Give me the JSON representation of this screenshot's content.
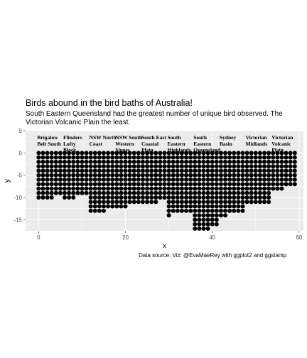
{
  "chart_data": {
    "type": "scatter",
    "title": "Birds abound in the bird baths of Australia!",
    "subtitle": "South Eastern Queensland had the greatest number of unique bird observed. The Victorian Volcanic Plain the least.",
    "caption": "Data source:  Viz: @EvaMaeRey with ggplot2 and ggstamp",
    "xlabel": "x",
    "ylabel": "y",
    "xlim": [
      -3,
      61
    ],
    "ylim": [
      -17.5,
      5
    ],
    "x_ticks": [
      0,
      20,
      40,
      60
    ],
    "y_ticks": [
      5,
      0,
      -5,
      -10,
      -15
    ],
    "grid": true,
    "regions": [
      {
        "name": "Bioregion 1",
        "label": [
          "Brigalow",
          "Belt South"
        ],
        "x_start": 0,
        "rows": [
          6,
          6,
          6,
          6,
          6,
          6,
          6,
          6,
          6,
          6,
          4
        ]
      },
      {
        "name": "Bioregion 2",
        "label": [
          "Flinders",
          "Lofty",
          "Block"
        ],
        "x_start": 6,
        "rows": [
          6,
          6,
          6,
          6,
          6,
          6,
          6,
          6,
          6,
          6,
          3
        ]
      },
      {
        "name": "Bioregion 3",
        "label": [
          "NSW North",
          "Coast"
        ],
        "x_start": 12,
        "rows": [
          6,
          6,
          6,
          6,
          6,
          6,
          6,
          6,
          6,
          6,
          6,
          6,
          6,
          4
        ]
      },
      {
        "name": "Bioregion 4",
        "label": [
          "NSW South",
          "Western",
          "Slopes"
        ],
        "x_start": 18,
        "rows": [
          6,
          6,
          6,
          6,
          6,
          6,
          6,
          6,
          6,
          6,
          6,
          6,
          3
        ]
      },
      {
        "name": "Bioregion 5",
        "label": [
          "South East",
          "Coastal",
          "Plain"
        ],
        "x_start": 24,
        "rows": [
          6,
          6,
          6,
          6,
          6,
          6,
          6,
          6,
          6,
          6,
          6,
          4
        ]
      },
      {
        "name": "Bioregion 6",
        "label": [
          "South",
          "Eastern",
          "Highlands"
        ],
        "x_start": 30,
        "rows": [
          6,
          6,
          6,
          6,
          6,
          6,
          6,
          6,
          6,
          6,
          6,
          6,
          6,
          6,
          1
        ]
      },
      {
        "name": "Bioregion 7",
        "label": [
          "South",
          "Eastern",
          "Queensland"
        ],
        "x_start": 36,
        "rows": [
          6,
          6,
          6,
          6,
          6,
          6,
          6,
          6,
          6,
          6,
          6,
          6,
          6,
          6,
          6,
          6,
          6,
          4
        ]
      },
      {
        "name": "Bioregion 8",
        "label": [
          "Sydney",
          "Basin"
        ],
        "x_start": 42,
        "rows": [
          6,
          6,
          6,
          6,
          6,
          6,
          6,
          6,
          6,
          6,
          6,
          6,
          6,
          6,
          2
        ]
      },
      {
        "name": "Bioregion 9",
        "label": [
          "Victorian",
          "Midlands"
        ],
        "x_start": 48,
        "rows": [
          6,
          6,
          6,
          6,
          6,
          6,
          6,
          6,
          6,
          6,
          6,
          6
        ]
      },
      {
        "name": "Bioregion 10",
        "label": [
          "Victorian",
          "Volcanic",
          "Plain"
        ],
        "x_start": 54,
        "rows": [
          6,
          6,
          6,
          6,
          6,
          6,
          6,
          6,
          3
        ]
      }
    ],
    "colors": {
      "points": "#000000",
      "panel": "#ebebeb",
      "grid": "#ffffff",
      "text": "#000000",
      "axis_text": "#4d4d4d"
    }
  }
}
